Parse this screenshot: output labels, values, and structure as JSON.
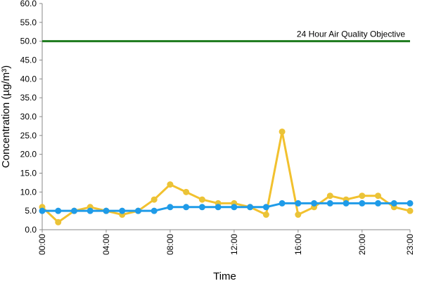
{
  "chart_data": {
    "type": "line",
    "xlabel": "Time",
    "ylabel": "Concentration (µg/m³)",
    "ylim": [
      0,
      60
    ],
    "yticks": [
      "0.0",
      "5.0",
      "10.0",
      "15.0",
      "20.0",
      "25.0",
      "30.0",
      "35.0",
      "40.0",
      "45.0",
      "50.0",
      "55.0",
      "60.0"
    ],
    "xlim": [
      0,
      23
    ],
    "xticks": [
      {
        "hour": 0,
        "label": "00:00"
      },
      {
        "hour": 4,
        "label": "04:00"
      },
      {
        "hour": 8,
        "label": "08:00"
      },
      {
        "hour": 12,
        "label": "12:00"
      },
      {
        "hour": 16,
        "label": "16:00"
      },
      {
        "hour": 20,
        "label": "20:00"
      },
      {
        "hour": 23,
        "label": "23:00"
      }
    ],
    "x": [
      0,
      1,
      2,
      3,
      4,
      5,
      6,
      7,
      8,
      9,
      10,
      11,
      12,
      13,
      14,
      15,
      16,
      17,
      18,
      19,
      20,
      21,
      22,
      23
    ],
    "series": [
      {
        "color": "#f2c12e",
        "marker_color": "#e8c43a",
        "values": [
          6,
          2,
          5,
          6,
          5,
          4,
          5,
          8,
          12,
          10,
          8,
          7,
          7,
          6,
          4,
          26,
          4,
          6,
          9,
          8,
          9,
          9,
          6,
          5
        ]
      },
      {
        "color": "#1f9be8",
        "marker_color": "#1f9be8",
        "values": [
          5,
          5,
          5,
          5,
          5,
          5,
          5,
          5,
          6,
          6,
          6,
          6,
          6,
          6,
          6,
          7,
          7,
          7,
          7,
          7,
          7,
          7,
          7,
          7
        ]
      }
    ],
    "reference_line": {
      "value": 50,
      "label": "24 Hour Air Quality Objective",
      "color": "#1e7b1e"
    },
    "grid": false,
    "legend": "none"
  }
}
